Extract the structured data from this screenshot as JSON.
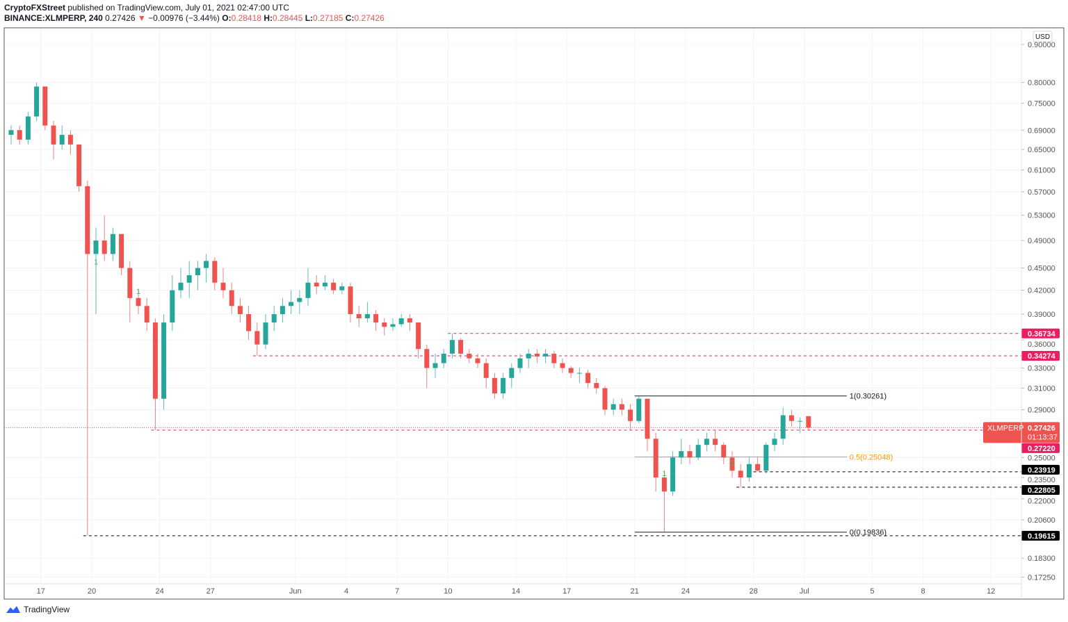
{
  "header": {
    "publisher": "CryptoFXStreet",
    "published_text": "published on TradingView.com, July 01, 2021 02:47:00 UTC",
    "symbol": "BINANCE:XLMPERP, 240",
    "last": "0.27426",
    "change": "−0.00976 (−3.44%)",
    "change_icon": "triangle-down-icon",
    "o_label": "O:",
    "o": "0.28418",
    "h_label": "H:",
    "h": "0.28445",
    "l_label": "L:",
    "l": "0.27185",
    "c_label": "C:",
    "c": "0.27426"
  },
  "footer": {
    "brand": "TradingView"
  },
  "colors": {
    "up": "#26a69a",
    "down": "#ef5350",
    "level_pink": "#e91e63",
    "level_black": "#000000",
    "fib_orange": "#ff9800",
    "grid": "#f0f3fa"
  },
  "chart_data": {
    "type": "candlestick",
    "title": "",
    "currency": "USD",
    "y_scale": "log",
    "ylim": [
      0.168,
      0.93
    ],
    "xlim": [
      "2021-05-14T20:00",
      "2021-07-14T00:00"
    ],
    "grid": true,
    "y_ticks": [
      "0.90000",
      "0.80000",
      "0.75000",
      "0.69000",
      "0.65000",
      "0.61000",
      "0.57000",
      "0.53000",
      "0.49000",
      "0.45000",
      "0.42000",
      "0.39000",
      "0.36000",
      "0.33000",
      "0.31000",
      "0.29000",
      "0.25000",
      "0.23500",
      "0.22000",
      "0.20600",
      "0.18300",
      "0.17250"
    ],
    "x_ticks": [
      {
        "label": "17",
        "date": "2021-05-17"
      },
      {
        "label": "20",
        "date": "2021-05-20"
      },
      {
        "label": "24",
        "date": "2021-05-24"
      },
      {
        "label": "27",
        "date": "2021-05-27"
      },
      {
        "label": "Jun",
        "date": "2021-06-01"
      },
      {
        "label": "4",
        "date": "2021-06-04"
      },
      {
        "label": "7",
        "date": "2021-06-07"
      },
      {
        "label": "10",
        "date": "2021-06-10"
      },
      {
        "label": "14",
        "date": "2021-06-14"
      },
      {
        "label": "17",
        "date": "2021-06-17"
      },
      {
        "label": "21",
        "date": "2021-06-21"
      },
      {
        "label": "24",
        "date": "2021-06-24"
      },
      {
        "label": "28",
        "date": "2021-06-28"
      },
      {
        "label": "Jul",
        "date": "2021-07-01"
      },
      {
        "label": "5",
        "date": "2021-07-05"
      },
      {
        "label": "8",
        "date": "2021-07-08"
      },
      {
        "label": "12",
        "date": "2021-07-12"
      }
    ],
    "candles_columns": [
      "time",
      "open",
      "high",
      "low",
      "close"
    ],
    "candles": [
      [
        "2021-05-15T00:00",
        0.68,
        0.7,
        0.66,
        0.69
      ],
      [
        "2021-05-15T12:00",
        0.69,
        0.7,
        0.66,
        0.67
      ],
      [
        "2021-05-16T00:00",
        0.67,
        0.73,
        0.66,
        0.72
      ],
      [
        "2021-05-16T12:00",
        0.72,
        0.8,
        0.71,
        0.79
      ],
      [
        "2021-05-17T00:00",
        0.79,
        0.79,
        0.69,
        0.7
      ],
      [
        "2021-05-17T12:00",
        0.7,
        0.71,
        0.63,
        0.66
      ],
      [
        "2021-05-18T00:00",
        0.66,
        0.7,
        0.65,
        0.68
      ],
      [
        "2021-05-18T12:00",
        0.68,
        0.69,
        0.64,
        0.66
      ],
      [
        "2021-05-19T00:00",
        0.66,
        0.66,
        0.57,
        0.58
      ],
      [
        "2021-05-19T12:00",
        0.58,
        0.59,
        0.19615,
        0.47
      ],
      [
        "2021-05-20T00:00",
        0.47,
        0.51,
        0.39,
        0.49
      ],
      [
        "2021-05-20T12:00",
        0.49,
        0.53,
        0.46,
        0.47
      ],
      [
        "2021-05-21T00:00",
        0.47,
        0.51,
        0.46,
        0.5
      ],
      [
        "2021-05-21T12:00",
        0.5,
        0.5,
        0.44,
        0.45
      ],
      [
        "2021-05-22T00:00",
        0.45,
        0.46,
        0.38,
        0.41
      ],
      [
        "2021-05-22T12:00",
        0.41,
        0.42,
        0.39,
        0.4
      ],
      [
        "2021-05-23T00:00",
        0.4,
        0.41,
        0.37,
        0.38
      ],
      [
        "2021-05-23T12:00",
        0.38,
        0.385,
        0.2722,
        0.3
      ],
      [
        "2021-05-24T00:00",
        0.3,
        0.39,
        0.29,
        0.38
      ],
      [
        "2021-05-24T12:00",
        0.38,
        0.44,
        0.37,
        0.42
      ],
      [
        "2021-05-25T00:00",
        0.42,
        0.45,
        0.41,
        0.43
      ],
      [
        "2021-05-25T12:00",
        0.43,
        0.46,
        0.41,
        0.44
      ],
      [
        "2021-05-26T00:00",
        0.44,
        0.46,
        0.42,
        0.45
      ],
      [
        "2021-05-26T12:00",
        0.45,
        0.47,
        0.43,
        0.46
      ],
      [
        "2021-05-27T00:00",
        0.46,
        0.465,
        0.42,
        0.43
      ],
      [
        "2021-05-27T12:00",
        0.43,
        0.45,
        0.41,
        0.42
      ],
      [
        "2021-05-28T00:00",
        0.42,
        0.43,
        0.39,
        0.4
      ],
      [
        "2021-05-28T12:00",
        0.4,
        0.41,
        0.38,
        0.39
      ],
      [
        "2021-05-29T00:00",
        0.39,
        0.4,
        0.36,
        0.37
      ],
      [
        "2021-05-29T12:00",
        0.37,
        0.38,
        0.34274,
        0.355
      ],
      [
        "2021-05-30T00:00",
        0.355,
        0.39,
        0.35,
        0.38
      ],
      [
        "2021-05-30T12:00",
        0.38,
        0.4,
        0.37,
        0.39
      ],
      [
        "2021-05-31T00:00",
        0.39,
        0.41,
        0.38,
        0.4
      ],
      [
        "2021-05-31T12:00",
        0.4,
        0.42,
        0.39,
        0.405
      ],
      [
        "2021-06-01T00:00",
        0.405,
        0.42,
        0.39,
        0.41
      ],
      [
        "2021-06-01T12:00",
        0.41,
        0.45,
        0.4,
        0.43
      ],
      [
        "2021-06-02T00:00",
        0.43,
        0.44,
        0.415,
        0.425
      ],
      [
        "2021-06-02T12:00",
        0.425,
        0.44,
        0.42,
        0.43
      ],
      [
        "2021-06-03T00:00",
        0.43,
        0.435,
        0.415,
        0.42
      ],
      [
        "2021-06-03T12:00",
        0.42,
        0.43,
        0.415,
        0.425
      ],
      [
        "2021-06-04T00:00",
        0.425,
        0.43,
        0.38,
        0.39
      ],
      [
        "2021-06-04T12:00",
        0.39,
        0.4,
        0.375,
        0.385
      ],
      [
        "2021-06-05T00:00",
        0.385,
        0.405,
        0.38,
        0.39
      ],
      [
        "2021-06-05T12:00",
        0.39,
        0.395,
        0.37,
        0.38
      ],
      [
        "2021-06-06T00:00",
        0.38,
        0.385,
        0.365,
        0.375
      ],
      [
        "2021-06-06T12:00",
        0.375,
        0.385,
        0.37,
        0.378
      ],
      [
        "2021-06-07T00:00",
        0.378,
        0.39,
        0.375,
        0.385
      ],
      [
        "2021-06-07T12:00",
        0.385,
        0.39,
        0.37,
        0.38
      ],
      [
        "2021-06-08T00:00",
        0.38,
        0.38,
        0.34,
        0.35
      ],
      [
        "2021-06-08T12:00",
        0.35,
        0.355,
        0.31,
        0.33
      ],
      [
        "2021-06-09T00:00",
        0.33,
        0.345,
        0.32,
        0.335
      ],
      [
        "2021-06-09T12:00",
        0.335,
        0.35,
        0.33,
        0.345
      ],
      [
        "2021-06-10T00:00",
        0.345,
        0.36734,
        0.34,
        0.36
      ],
      [
        "2021-06-10T12:00",
        0.36,
        0.362,
        0.34,
        0.345
      ],
      [
        "2021-06-11T00:00",
        0.345,
        0.35,
        0.335,
        0.34
      ],
      [
        "2021-06-11T12:00",
        0.34,
        0.345,
        0.33,
        0.335
      ],
      [
        "2021-06-12T00:00",
        0.335,
        0.34,
        0.31,
        0.32
      ],
      [
        "2021-06-12T12:00",
        0.32,
        0.325,
        0.3,
        0.305
      ],
      [
        "2021-06-13T00:00",
        0.305,
        0.325,
        0.3,
        0.32
      ],
      [
        "2021-06-13T12:00",
        0.32,
        0.335,
        0.31,
        0.33
      ],
      [
        "2021-06-14T00:00",
        0.33,
        0.345,
        0.325,
        0.34
      ],
      [
        "2021-06-14T12:00",
        0.34,
        0.35,
        0.33,
        0.345
      ],
      [
        "2021-06-15T00:00",
        0.345,
        0.35,
        0.335,
        0.342
      ],
      [
        "2021-06-15T12:00",
        0.342,
        0.35,
        0.335,
        0.345
      ],
      [
        "2021-06-16T00:00",
        0.345,
        0.348,
        0.33,
        0.335
      ],
      [
        "2021-06-16T12:00",
        0.335,
        0.34,
        0.325,
        0.33
      ],
      [
        "2021-06-17T00:00",
        0.33,
        0.332,
        0.32,
        0.325
      ],
      [
        "2021-06-17T12:00",
        0.325,
        0.33,
        0.315,
        0.325
      ],
      [
        "2021-06-18T00:00",
        0.325,
        0.328,
        0.31,
        0.315
      ],
      [
        "2021-06-18T12:00",
        0.315,
        0.32,
        0.305,
        0.31
      ],
      [
        "2021-06-19T00:00",
        0.31,
        0.312,
        0.285,
        0.29
      ],
      [
        "2021-06-19T12:00",
        0.29,
        0.3,
        0.285,
        0.295
      ],
      [
        "2021-06-20T00:00",
        0.295,
        0.3,
        0.285,
        0.29
      ],
      [
        "2021-06-20T12:00",
        0.29,
        0.295,
        0.272,
        0.28
      ],
      [
        "2021-06-21T00:00",
        0.28,
        0.30261,
        0.278,
        0.3
      ],
      [
        "2021-06-21T12:00",
        0.3,
        0.3,
        0.255,
        0.265
      ],
      [
        "2021-06-22T00:00",
        0.265,
        0.27,
        0.225,
        0.235
      ],
      [
        "2021-06-22T12:00",
        0.235,
        0.24,
        0.19836,
        0.225
      ],
      [
        "2021-06-23T00:00",
        0.225,
        0.255,
        0.222,
        0.25
      ],
      [
        "2021-06-23T12:00",
        0.25,
        0.265,
        0.245,
        0.255
      ],
      [
        "2021-06-24T00:00",
        0.255,
        0.26,
        0.245,
        0.25
      ],
      [
        "2021-06-24T12:00",
        0.25,
        0.265,
        0.248,
        0.26
      ],
      [
        "2021-06-25T00:00",
        0.26,
        0.27,
        0.255,
        0.265
      ],
      [
        "2021-06-25T12:00",
        0.265,
        0.272,
        0.255,
        0.26
      ],
      [
        "2021-06-26T00:00",
        0.26,
        0.262,
        0.245,
        0.25
      ],
      [
        "2021-06-26T12:00",
        0.25,
        0.255,
        0.235,
        0.24
      ],
      [
        "2021-06-27T00:00",
        0.24,
        0.245,
        0.22805,
        0.235
      ],
      [
        "2021-06-27T12:00",
        0.235,
        0.25,
        0.232,
        0.245
      ],
      [
        "2021-06-28T00:00",
        0.245,
        0.25,
        0.23919,
        0.24
      ],
      [
        "2021-06-28T12:00",
        0.24,
        0.262,
        0.238,
        0.26
      ],
      [
        "2021-06-29T00:00",
        0.26,
        0.27,
        0.255,
        0.265
      ],
      [
        "2021-06-29T12:00",
        0.265,
        0.292,
        0.26,
        0.285
      ],
      [
        "2021-06-30T00:00",
        0.285,
        0.29,
        0.275,
        0.28
      ],
      [
        "2021-06-30T12:00",
        0.28,
        0.283,
        0.27,
        0.28
      ],
      [
        "2021-07-01T00:00",
        0.28418,
        0.28445,
        0.27185,
        0.27426
      ]
    ],
    "levels": [
      {
        "price": 0.36734,
        "label": "0.36734",
        "from": "2021-06-10T00:00",
        "style": "dashed",
        "color": "pink"
      },
      {
        "price": 0.34274,
        "label": "0.34274",
        "from": "2021-05-29T12:00",
        "style": "dashed",
        "color": "pink"
      },
      {
        "price": 0.2722,
        "label": "0.27220",
        "from": "2021-05-23T12:00",
        "style": "dashed",
        "color": "pink"
      },
      {
        "price": 0.23919,
        "label": "0.23919",
        "from": "2021-06-28T00:00",
        "style": "dashed",
        "color": "black"
      },
      {
        "price": 0.22805,
        "label": "0.22805",
        "from": "2021-06-27T00:00",
        "style": "dashed",
        "color": "black"
      },
      {
        "price": 0.19615,
        "label": "0.19615",
        "from": "2021-05-19T12:00",
        "style": "dashed",
        "color": "black"
      }
    ],
    "fibonacci": {
      "from": "2021-06-21T00:00",
      "to": "2021-07-03T12:00",
      "levels": [
        {
          "price": 0.30261,
          "label": "1(0.30261)",
          "color": "black"
        },
        {
          "price": 0.25048,
          "label": "0.5(0.25048)",
          "color": "orange"
        },
        {
          "price": 0.19836,
          "label": "0(0.19836)",
          "color": "black"
        }
      ]
    },
    "current_price": {
      "symbol": "XLMPERP",
      "price": 0.27426,
      "label": "0.27426",
      "countdown": "01:13:37"
    },
    "markers": [
      {
        "text": "1",
        "time": "2021-05-20T00:00",
        "price": 0.455
      },
      {
        "text": "1",
        "time": "2021-05-22T12:00",
        "price": 0.415
      },
      {
        "text": "1",
        "time": "2021-06-22T12:00",
        "price": 0.236
      },
      {
        "text": "1",
        "time": "2021-06-26T12:00",
        "price": 0.244
      }
    ]
  }
}
